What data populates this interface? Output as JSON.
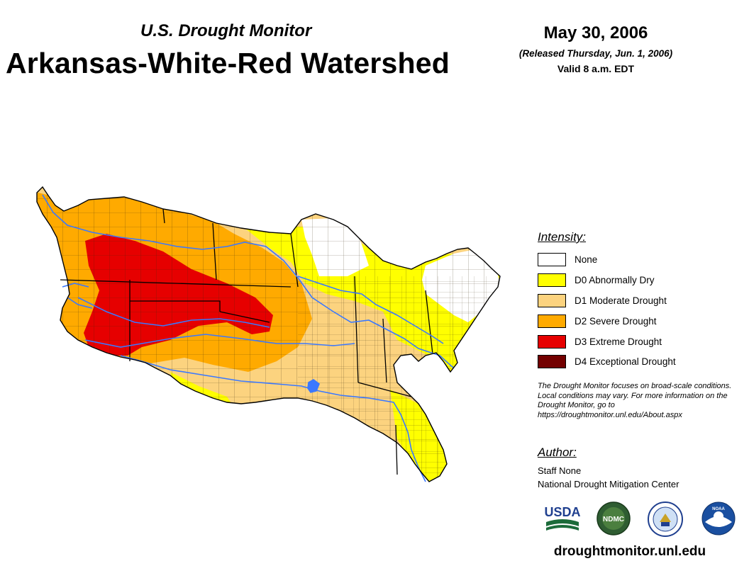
{
  "header": {
    "subtitle": "U.S. Drought Monitor",
    "title": "Arkansas-White-Red Watershed",
    "date": "May 30, 2006",
    "released": "(Released Thursday, Jun. 1, 2006)",
    "valid": "Valid 8 a.m. EDT"
  },
  "legend": {
    "title": "Intensity:",
    "items": [
      {
        "label": "None",
        "color": "#ffffff"
      },
      {
        "label": "D0 Abnormally Dry",
        "color": "#ffff00"
      },
      {
        "label": "D1 Moderate Drought",
        "color": "#fcd37f"
      },
      {
        "label": "D2 Severe Drought",
        "color": "#ffaa00"
      },
      {
        "label": "D3 Extreme Drought",
        "color": "#e60000"
      },
      {
        "label": "D4 Exceptional Drought",
        "color": "#730000"
      }
    ]
  },
  "note": "The Drought Monitor focuses on broad-scale conditions. Local conditions may vary. For more information on the Drought Monitor, go to https://droughtmonitor.unl.edu/About.aspx",
  "author": {
    "title": "Author:",
    "name": "Staff None",
    "org": "National Drought Mitigation Center"
  },
  "logos": {
    "usda": "USDA",
    "ndmc": "NDMC",
    "noaa": "NOAA"
  },
  "url": "droughtmonitor.unl.edu",
  "colors": {
    "river": "#3a78ff",
    "county_line": "#3a2a10",
    "state_line": "#000000"
  }
}
